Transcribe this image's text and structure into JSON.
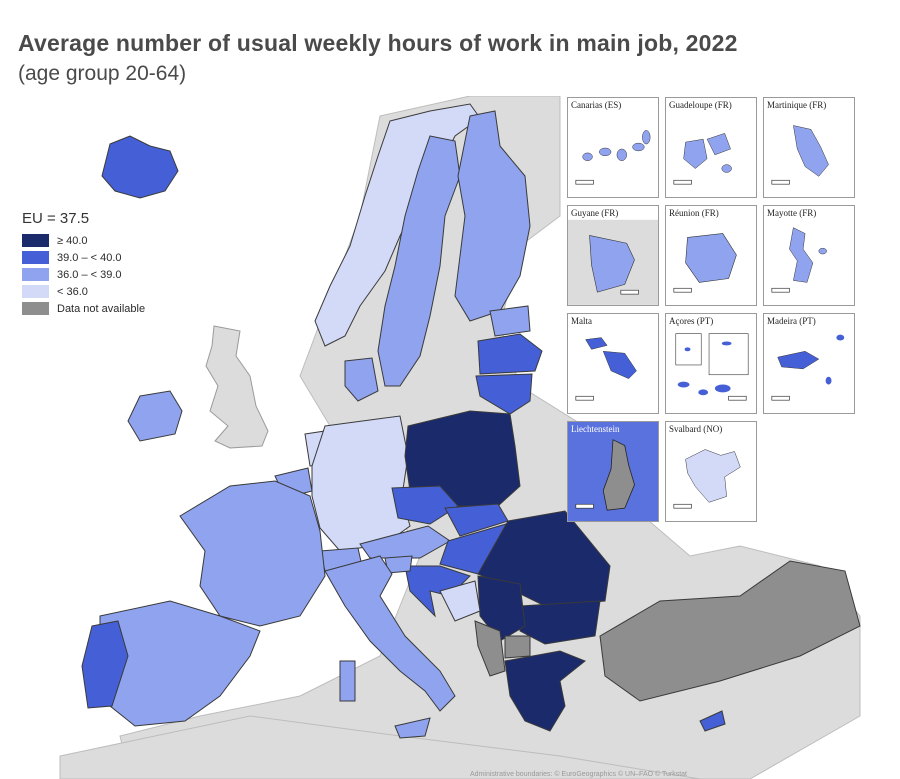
{
  "title": "Average number of usual weekly hours of work in main job, 2022",
  "subtitle": "(age group 20-64)",
  "legend": {
    "eu_value": "EU = 37.5",
    "items": [
      {
        "label": "≥ 40.0",
        "color": "#1b2a6b"
      },
      {
        "label": "39.0 – < 40.0",
        "color": "#4560d6"
      },
      {
        "label": "36.0 – < 39.0",
        "color": "#8fa3ee"
      },
      {
        "label": "< 36.0",
        "color": "#d2daf8"
      },
      {
        "label": "Data not available",
        "color": "#8e8e8e"
      }
    ]
  },
  "insets": [
    {
      "label": "Canarias (ES)",
      "color": "#8fa3ee"
    },
    {
      "label": "Guadeloupe (FR)",
      "color": "#8fa3ee"
    },
    {
      "label": "Martinique (FR)",
      "color": "#8fa3ee"
    },
    {
      "label": "Guyane (FR)",
      "color": "#8fa3ee"
    },
    {
      "label": "Réunion (FR)",
      "color": "#8fa3ee"
    },
    {
      "label": "Mayotte (FR)",
      "color": "#8fa3ee"
    },
    {
      "label": "Malta",
      "color": "#4560d6"
    },
    {
      "label": "Açores (PT)",
      "color": "#4560d6"
    },
    {
      "label": "Madeira (PT)",
      "color": "#4560d6"
    },
    {
      "label": "Liechtenstein",
      "color": "#8e8e8e"
    },
    {
      "label": "Svalbard (NO)",
      "color": "#d2daf8"
    }
  ],
  "map_colors": {
    "sea": "#ffffff",
    "non_eu": "#dcdcdc",
    "border": "#3a3a3a"
  },
  "footer": "Administrative boundaries: © EuroGeographics © UN–FAO © Turkstat"
}
